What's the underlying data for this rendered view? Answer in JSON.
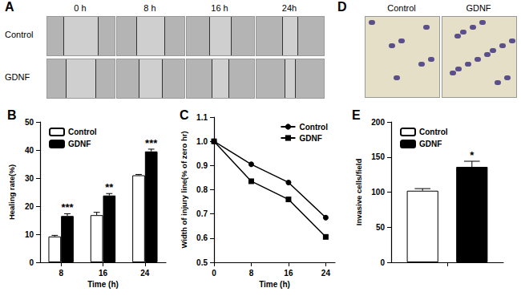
{
  "chart_data": [
    {
      "type": "bar",
      "title": "B",
      "x_label": "Time (h)",
      "y_label": "Healing rate(%)",
      "categories": [
        "8",
        "16",
        "24"
      ],
      "series": [
        {
          "name": "Control",
          "color": "#ffffff",
          "values": [
            9.2,
            16.8,
            31.0
          ],
          "errors": [
            0.4,
            1.0,
            0.3
          ]
        },
        {
          "name": "GDNF",
          "color": "#000000",
          "values": [
            16.5,
            23.8,
            39.5
          ],
          "errors": [
            0.8,
            0.7,
            0.8
          ],
          "annotations": [
            "***",
            "**",
            "***"
          ]
        }
      ],
      "ylim": [
        0,
        50
      ],
      "yticks": [
        0,
        10,
        20,
        30,
        40,
        50
      ],
      "grid": false,
      "legend": "upper left"
    },
    {
      "type": "line",
      "title": "C",
      "x_label": "Time (h)",
      "y_label": "Width of injury line(% of zero hr)",
      "x": [
        0,
        8,
        16,
        24
      ],
      "series": [
        {
          "name": "Control",
          "color": "#000000",
          "marker": "circle",
          "values": [
            1.0,
            0.905,
            0.83,
            0.685
          ]
        },
        {
          "name": "GDNF",
          "color": "#000000",
          "marker": "rect",
          "values": [
            1.0,
            0.835,
            0.76,
            0.605
          ]
        }
      ],
      "xlim": [
        0,
        26
      ],
      "xticks": [
        0,
        8,
        16,
        24
      ],
      "ylim": [
        0.5,
        1.1
      ],
      "yticks": [
        0.5,
        0.6,
        0.7,
        0.8,
        0.9,
        {
          "value": 1,
          "label": "1.0"
        },
        1.1
      ],
      "grid": false,
      "legend": "upper right"
    },
    {
      "type": "bar",
      "title": "E",
      "y_label": "Invasive cells/field",
      "categories": [
        null
      ],
      "series": [
        {
          "name": "Control",
          "color": "#ffffff",
          "values": [
            102
          ],
          "errors": [
            3
          ]
        },
        {
          "name": "GDNF",
          "color": "#000000",
          "values": [
            136
          ],
          "errors": [
            8
          ],
          "annotations": [
            "*"
          ]
        }
      ],
      "ylim": [
        0,
        200
      ],
      "yticks": [
        0,
        50,
        100,
        150,
        200
      ],
      "grid": false,
      "legend": "upper left"
    }
  ],
  "image_panels": [
    {
      "title": "A",
      "columns": [
        "0 h",
        "8 h",
        "16 h",
        "24h"
      ],
      "rows": [
        "Control",
        "GDNF"
      ]
    },
    {
      "title": "D",
      "columns": [
        "Control",
        "GDNF"
      ]
    }
  ]
}
